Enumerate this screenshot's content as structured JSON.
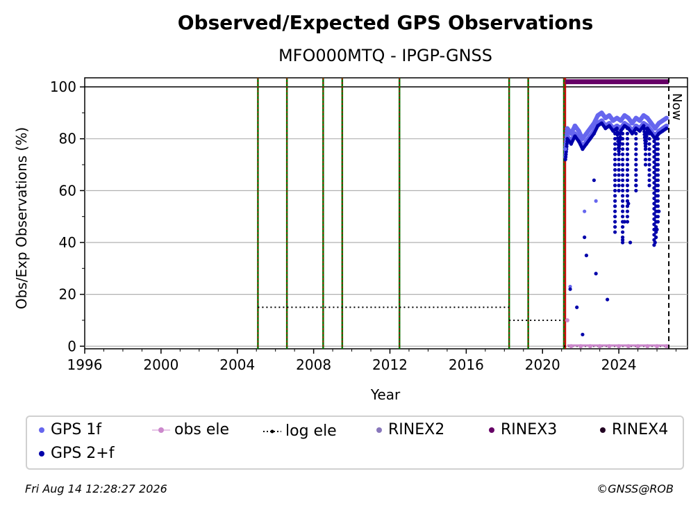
{
  "chart_data": {
    "type": "scatter",
    "title": "Observed/Expected GPS Observations",
    "subtitle": "MFO000MTQ - IPGP-GNSS",
    "xlabel": "Year",
    "ylabel": "Obs/Exp Observations (%)",
    "xlim": [
      1996,
      2027.6
    ],
    "ylim": [
      -1,
      103.5
    ],
    "xticks": [
      1996,
      2000,
      2004,
      2008,
      2012,
      2016,
      2020,
      2024
    ],
    "yticks": [
      0,
      20,
      40,
      60,
      80,
      100
    ],
    "grid": "horizontal",
    "legend_position": "bottom",
    "now_label": "Now",
    "now_x": 2026.62,
    "equipment_change_lines": [
      2005.08,
      2006.6,
      2008.5,
      2009.5,
      2012.5,
      2018.25,
      2019.25,
      2021.12
    ],
    "rinex_start_x": 2021.2,
    "rinex3_bar": {
      "x0": 2021.2,
      "x1": 2026.62,
      "y": 102
    },
    "log_ele": [
      {
        "x0": 2005.08,
        "x1": 2018.25,
        "y": 15
      },
      {
        "x0": 2018.25,
        "x1": 2021.12,
        "y": 10
      },
      {
        "x0": 2021.12,
        "x1": 2026.62,
        "y": 0
      }
    ],
    "series": [
      {
        "name": "GPS 1f",
        "color": "#6666ee",
        "points": [
          [
            2021.2,
            76
          ],
          [
            2021.3,
            84
          ],
          [
            2021.5,
            82
          ],
          [
            2021.7,
            85
          ],
          [
            2021.9,
            83
          ],
          [
            2022.1,
            80
          ],
          [
            2022.3,
            82
          ],
          [
            2022.5,
            84
          ],
          [
            2022.7,
            86
          ],
          [
            2022.9,
            89
          ],
          [
            2023.1,
            90
          ],
          [
            2023.3,
            88
          ],
          [
            2023.5,
            89
          ],
          [
            2023.7,
            87
          ],
          [
            2023.9,
            88
          ],
          [
            2024.1,
            87
          ],
          [
            2024.3,
            89
          ],
          [
            2024.5,
            88
          ],
          [
            2024.7,
            86
          ],
          [
            2024.9,
            88
          ],
          [
            2025.1,
            87
          ],
          [
            2025.3,
            89
          ],
          [
            2025.5,
            88
          ],
          [
            2025.7,
            86
          ],
          [
            2025.9,
            84
          ],
          [
            2026.1,
            86
          ],
          [
            2026.3,
            87
          ],
          [
            2026.5,
            88
          ],
          [
            2022.2,
            52
          ],
          [
            2022.8,
            56
          ],
          [
            2021.45,
            23
          ]
        ]
      },
      {
        "name": "GPS 2+f",
        "color": "#0000aa",
        "points": [
          [
            2021.2,
            72
          ],
          [
            2021.3,
            80
          ],
          [
            2021.5,
            78
          ],
          [
            2021.7,
            81
          ],
          [
            2021.9,
            79
          ],
          [
            2022.1,
            76
          ],
          [
            2022.3,
            78
          ],
          [
            2022.5,
            80
          ],
          [
            2022.7,
            82
          ],
          [
            2022.9,
            85
          ],
          [
            2023.1,
            86
          ],
          [
            2023.3,
            84
          ],
          [
            2023.5,
            85
          ],
          [
            2023.7,
            83
          ],
          [
            2023.9,
            84
          ],
          [
            2024.1,
            83
          ],
          [
            2024.3,
            85
          ],
          [
            2024.5,
            84
          ],
          [
            2024.7,
            82
          ],
          [
            2024.9,
            84
          ],
          [
            2025.1,
            83
          ],
          [
            2025.3,
            85
          ],
          [
            2025.5,
            84
          ],
          [
            2025.7,
            82
          ],
          [
            2025.9,
            80
          ],
          [
            2026.1,
            82
          ],
          [
            2026.3,
            83
          ],
          [
            2026.5,
            84
          ],
          [
            2021.45,
            22
          ],
          [
            2021.8,
            15
          ],
          [
            2022.1,
            4.5
          ],
          [
            2022.2,
            42
          ],
          [
            2022.3,
            35
          ],
          [
            2022.7,
            64
          ],
          [
            2022.8,
            28
          ],
          [
            2023.4,
            18
          ],
          [
            2023.8,
            70
          ],
          [
            2024.0,
            74
          ],
          [
            2024.2,
            41
          ],
          [
            2024.3,
            48
          ],
          [
            2024.5,
            55
          ],
          [
            2024.6,
            40
          ],
          [
            2024.9,
            62
          ],
          [
            2025.4,
            76
          ],
          [
            2025.6,
            66
          ],
          [
            2025.9,
            40
          ],
          [
            2026.0,
            45
          ],
          [
            2026.1,
            52
          ]
        ]
      },
      {
        "name": "obs ele",
        "color": "#cc88cc",
        "points": [
          [
            2021.3,
            10
          ],
          [
            2021.5,
            0
          ],
          [
            2022.0,
            0
          ],
          [
            2022.5,
            0
          ],
          [
            2023.0,
            0
          ],
          [
            2023.5,
            0
          ],
          [
            2024.0,
            0
          ],
          [
            2024.5,
            0
          ],
          [
            2025.0,
            0
          ],
          [
            2025.5,
            0
          ],
          [
            2026.0,
            0
          ],
          [
            2026.5,
            0
          ]
        ]
      }
    ],
    "drops": [
      {
        "x": 2023.8,
        "ymin": 44,
        "ymax": 85
      },
      {
        "x": 2024.0,
        "ymin": 60,
        "ymax": 85
      },
      {
        "x": 2024.2,
        "ymin": 40,
        "ymax": 84
      },
      {
        "x": 2024.45,
        "ymin": 48,
        "ymax": 85
      },
      {
        "x": 2024.9,
        "ymin": 60,
        "ymax": 84
      },
      {
        "x": 2025.4,
        "ymin": 70,
        "ymax": 85
      },
      {
        "x": 2025.6,
        "ymin": 62,
        "ymax": 84
      },
      {
        "x": 2025.85,
        "ymin": 39,
        "ymax": 82
      },
      {
        "x": 2025.95,
        "ymin": 42,
        "ymax": 82
      },
      {
        "x": 2026.05,
        "ymin": 48,
        "ymax": 82
      }
    ],
    "legend": [
      "GPS 1f",
      "obs ele",
      "log ele",
      "RINEX2",
      "RINEX3",
      "RINEX4",
      "GPS 2+f"
    ]
  },
  "colors": {
    "gps1f": "#6666ee",
    "gps2f": "#0000aa",
    "obs_ele": "#cc88cc",
    "log_ele": "#000000",
    "rinex2": "#8877bb",
    "rinex3": "#660066",
    "rinex4": "#220022",
    "change_green": "#007700",
    "change_red": "#cc0000"
  },
  "footer": {
    "timestamp": "Fri Aug 14 12:28:27 2026",
    "credit": "©GNSS@ROB"
  }
}
